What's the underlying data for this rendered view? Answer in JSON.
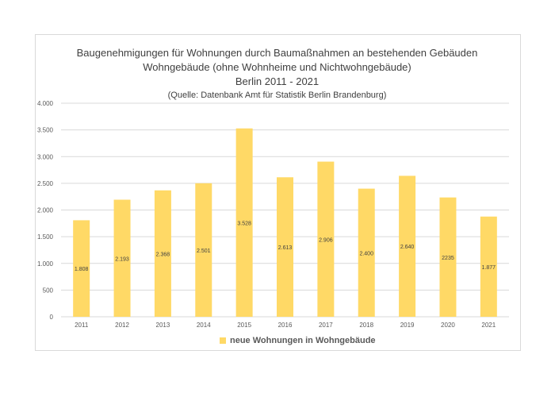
{
  "chart_data": {
    "type": "bar",
    "title_lines": [
      "Baugenehmigungen für Wohnungen durch Baumaßnahmen an bestehenden Gebäuden",
      "Wohngebäude (ohne Wohnheime und Nichtwohngebäude)",
      "Berlin 2011 - 2021"
    ],
    "subtitle": "(Quelle: Datenbank Amt für Statistik Berlin Brandenburg)",
    "categories": [
      "2011",
      "2012",
      "2013",
      "2014",
      "2015",
      "2016",
      "2017",
      "2018",
      "2019",
      "2020",
      "2021"
    ],
    "series": [
      {
        "name": "neue Wohnungen in Wohngebäude",
        "values": [
          1808,
          2193,
          2368,
          2501,
          3528,
          2613,
          2906,
          2400,
          2640,
          2235,
          1877
        ],
        "data_labels": [
          "1.808",
          "2.193",
          "2.368",
          "2.501",
          "3.528",
          "2.613",
          "2.906",
          "2.400",
          "2.640",
          "2235",
          "1.877"
        ],
        "color": "#ffd966"
      }
    ],
    "ylim": [
      0,
      4000
    ],
    "yticks": [
      0,
      500,
      1000,
      1500,
      2000,
      2500,
      3000,
      3500,
      4000
    ],
    "ytick_labels": [
      "0",
      "500",
      "1.000",
      "1.500",
      "2.000",
      "2.500",
      "3.000",
      "3.500",
      "4.000"
    ],
    "grid": true,
    "legend_position": "bottom"
  },
  "colors": {
    "gridline": "#d9d9d9",
    "axis_text": "#595959",
    "title_text": "#404040"
  }
}
